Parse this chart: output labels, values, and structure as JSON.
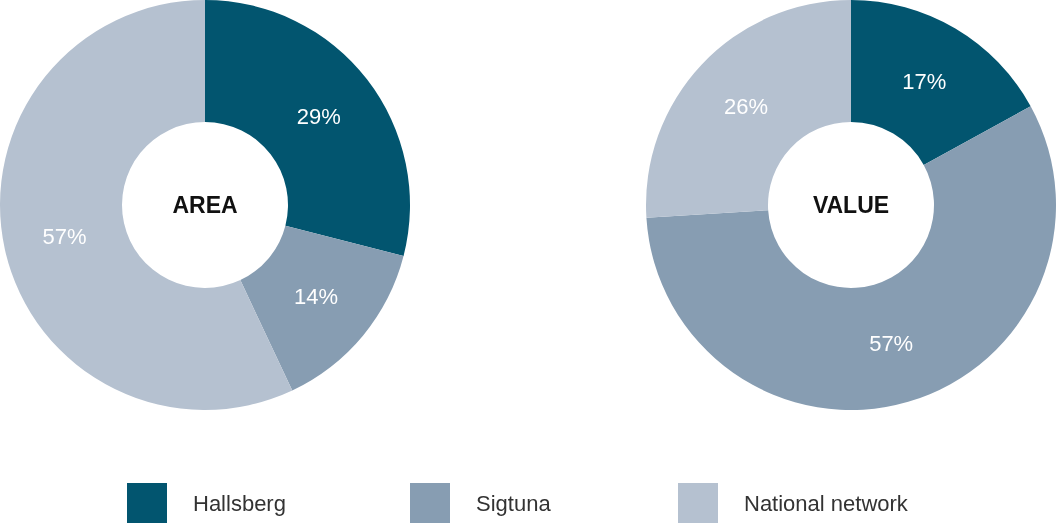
{
  "chart_data": [
    {
      "type": "donut",
      "title": "AREA",
      "categories": [
        "Hallsberg",
        "Sigtuna",
        "National network"
      ],
      "values": [
        29,
        14,
        57
      ],
      "colors": [
        "#02556f",
        "#879db2",
        "#b5c1d0"
      ],
      "value_labels": [
        "29%",
        "14%",
        "57%"
      ],
      "legend": "bottom"
    },
    {
      "type": "donut",
      "title": "VALUE",
      "categories": [
        null,
        null,
        null
      ],
      "values": [
        17,
        57,
        26
      ],
      "colors": [
        "#02556f",
        "#879db2",
        "#b5c1d0"
      ],
      "value_labels": [
        "17%",
        "57%",
        "26%"
      ]
    }
  ]
}
